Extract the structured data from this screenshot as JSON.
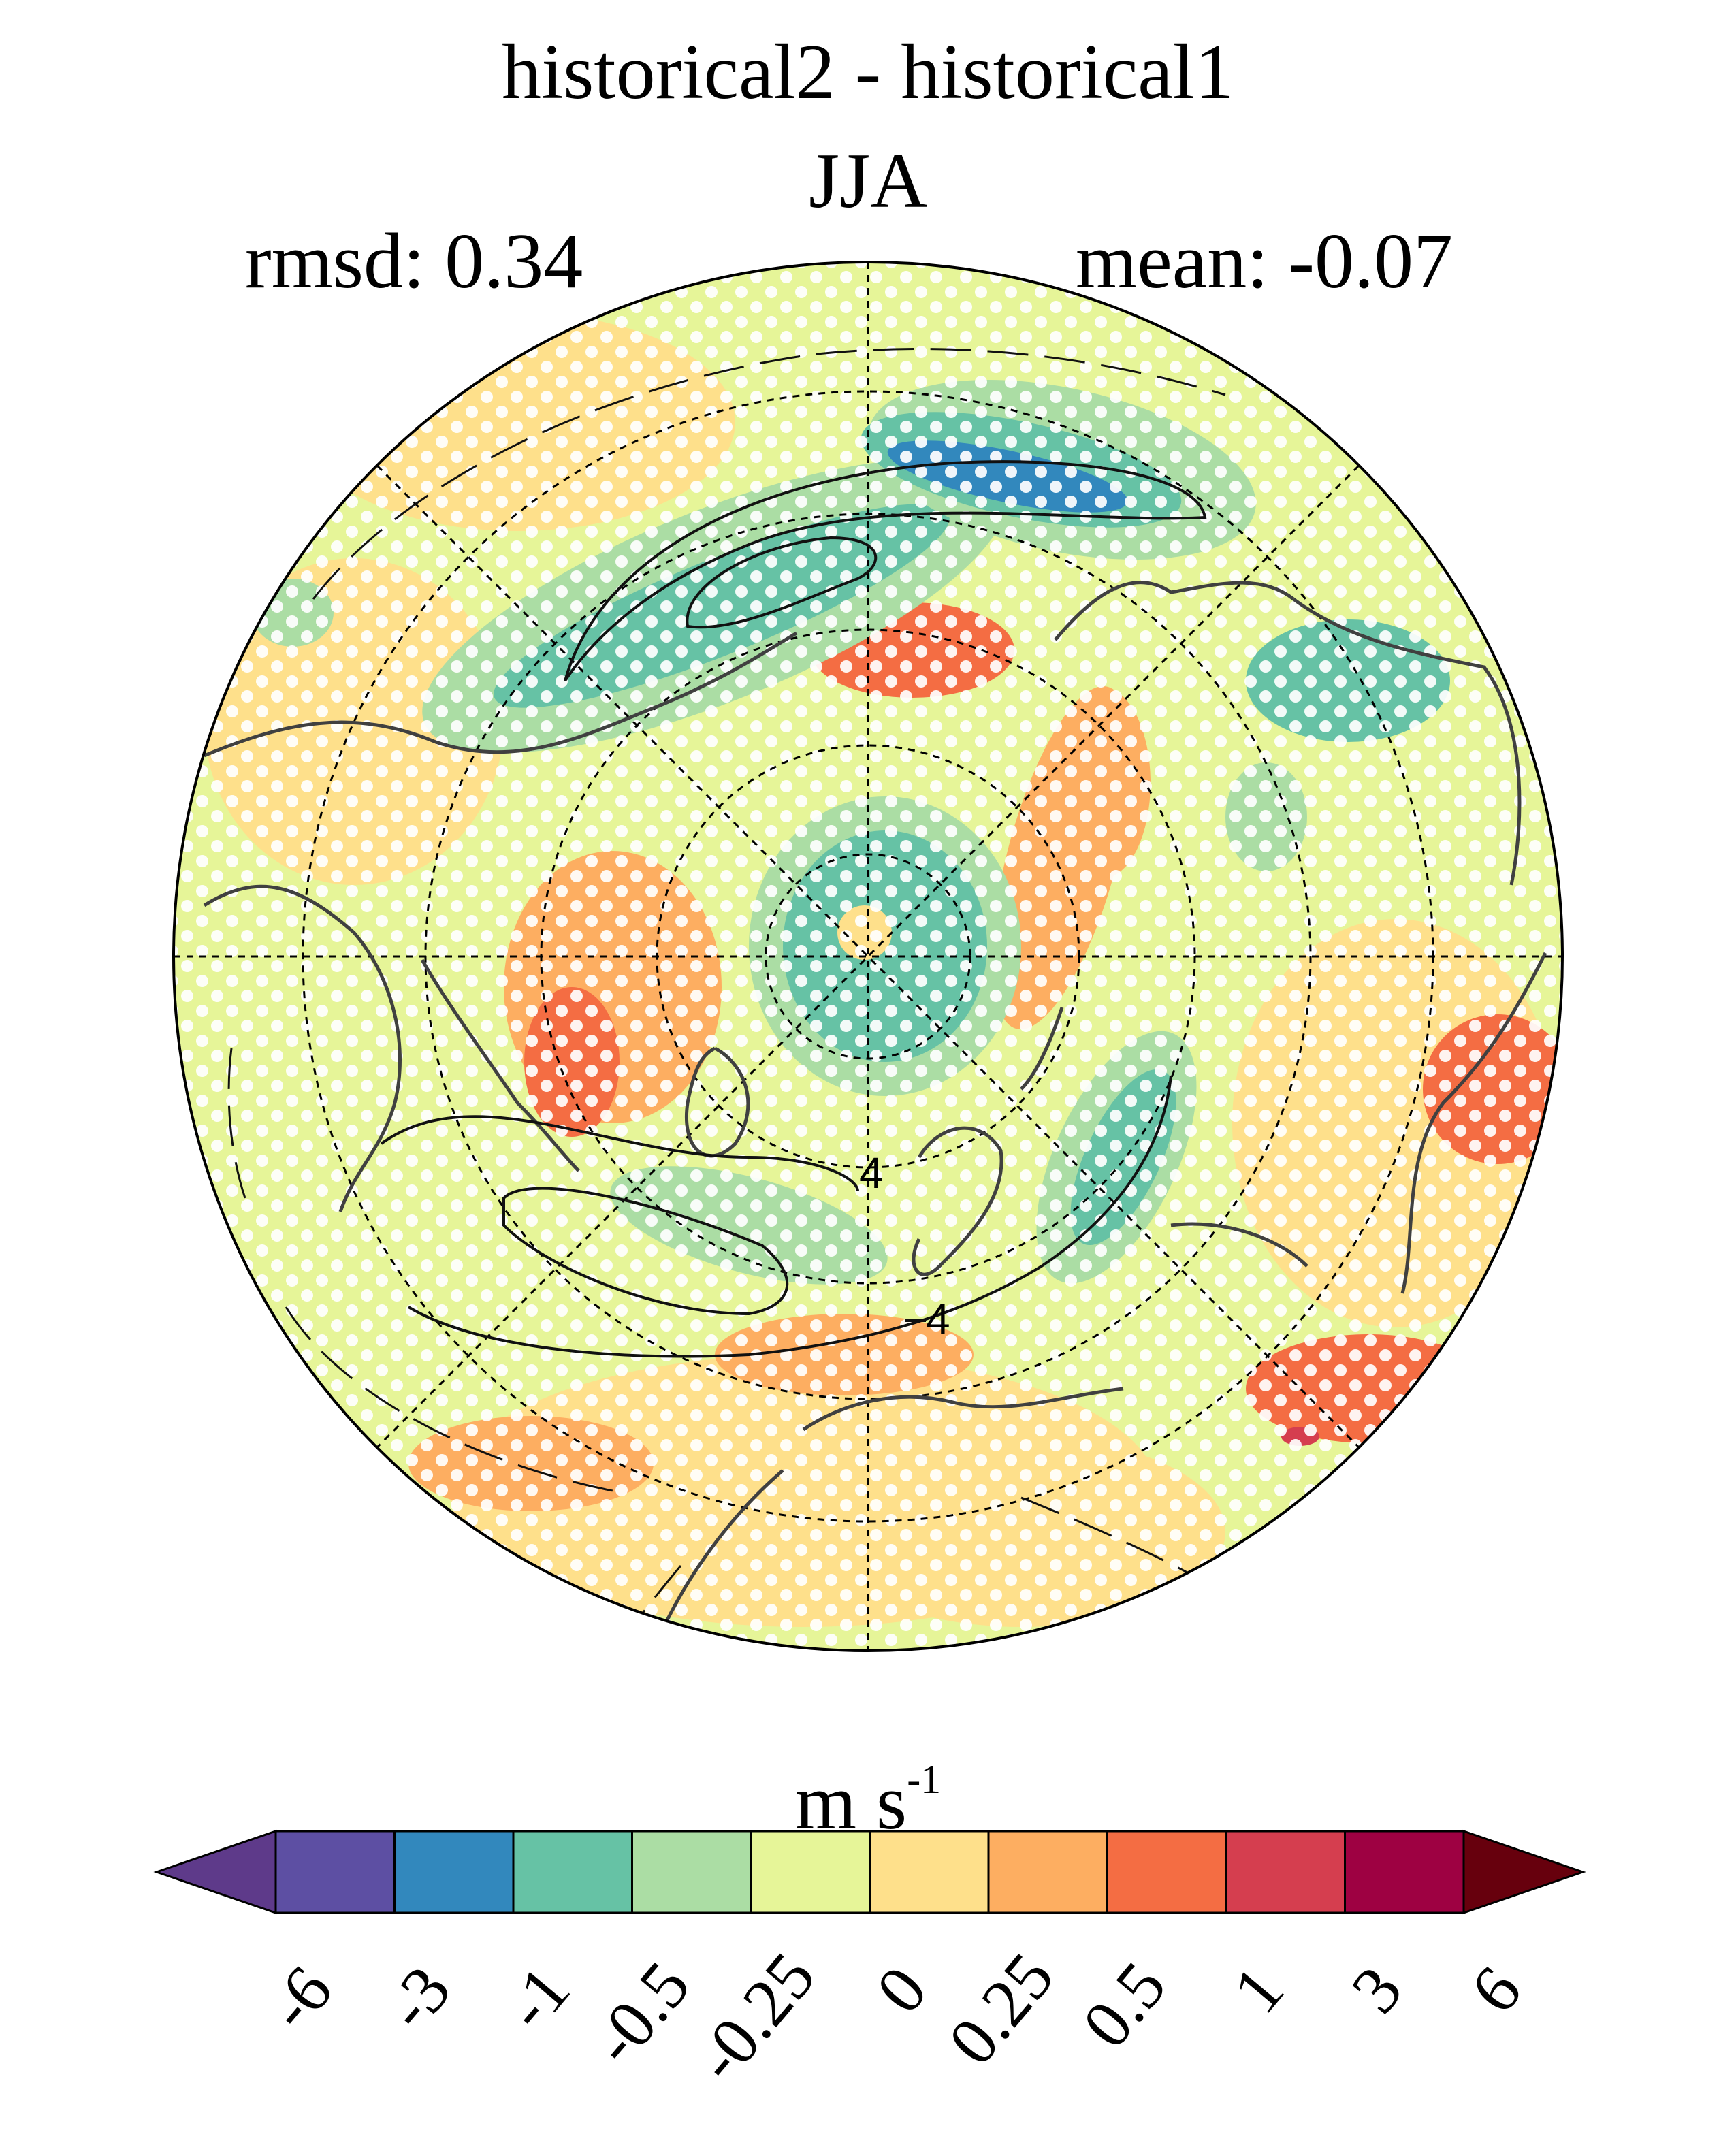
{
  "title": "historical2 - historical1",
  "season": "JJA",
  "stats": {
    "rmsd_label": "rmsd: 0.34",
    "mean_label": "mean: -0.07"
  },
  "map": {
    "projection": "north-polar-stereographic",
    "background_level": "0 to 0.25",
    "stippling": "white dots",
    "contour_labels": [
      "4",
      "4"
    ]
  },
  "colorbar": {
    "units_base": "m s",
    "units_exp": "-1",
    "tick_labels": [
      "-6",
      "-3",
      "-1",
      "-0.5",
      "-0.25",
      "0",
      "0.25",
      "0.5",
      "1",
      "3",
      "6"
    ],
    "colors": [
      "#5e3a8a",
      "#5d4fa3",
      "#3288bd",
      "#66c2a5",
      "#abdda4",
      "#e6f598",
      "#fee08b",
      "#fdae61",
      "#f46d43",
      "#d53e4f",
      "#9e0142",
      "#67000d"
    ]
  }
}
